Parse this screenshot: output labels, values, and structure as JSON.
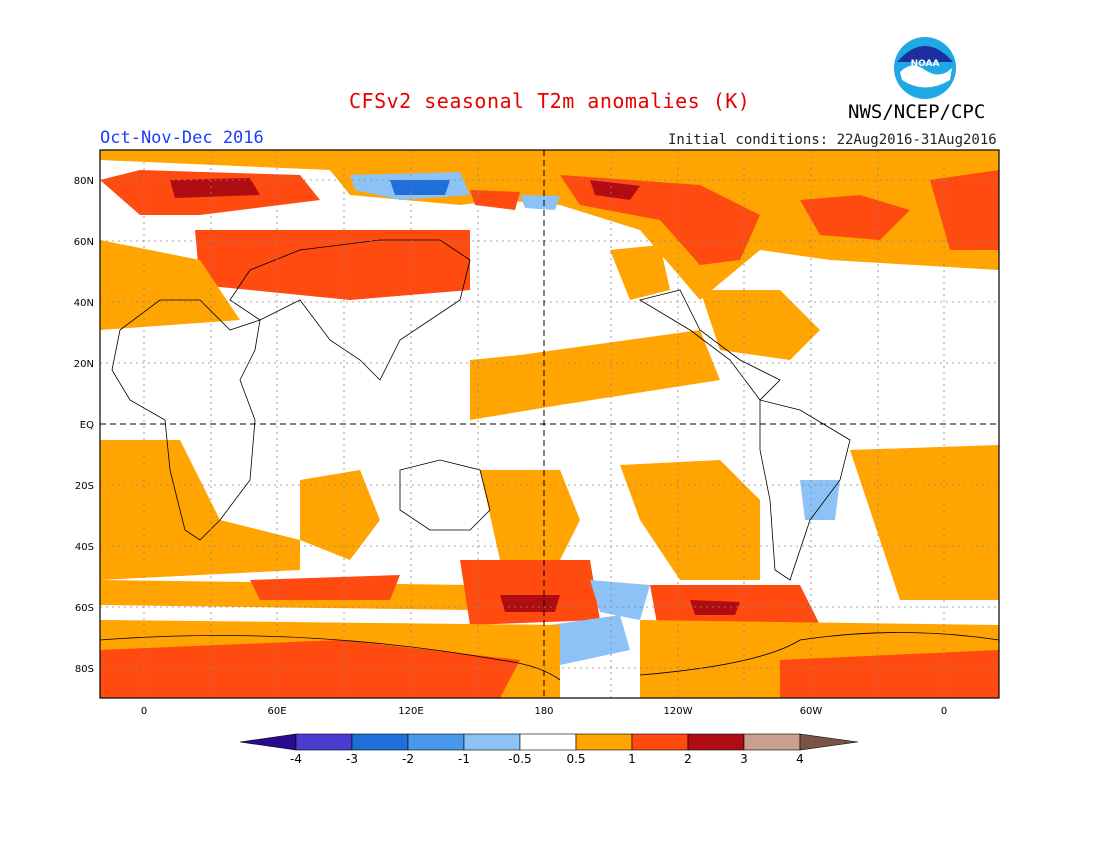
{
  "header": {
    "title": "CFSv2 seasonal T2m anomalies (K)",
    "org": "NWS/NCEP/CPC",
    "period": "Oct-Nov-Dec 2016",
    "initial_conditions": "Initial conditions: 22Aug2016-31Aug2016",
    "logo_text": "NOAA"
  },
  "map": {
    "lat_labels": [
      "80N",
      "60N",
      "40N",
      "20N",
      "EQ",
      "20S",
      "40S",
      "60S",
      "80S"
    ],
    "lon_labels": [
      "0",
      "60E",
      "120E",
      "180",
      "120W",
      "60W",
      "0"
    ]
  },
  "colorbar": {
    "labels": [
      "-4",
      "-3",
      "-2",
      "-1",
      "-0.5",
      "0.5",
      "1",
      "2",
      "3",
      "4"
    ],
    "colors": {
      "below_-4": "#2a0b8f",
      "-4_-3": "#4a3ccf",
      "-3_-2": "#1f6fd8",
      "-2_-1": "#4a98ea",
      "-1_-0.5": "#8cc2f5",
      "-0.5_0.5": "#ffffff",
      "0.5_1": "#ffa400",
      "1_2": "#ff4a10",
      "2_3": "#b00d13",
      "3_4": "#c9a090",
      "above_4": "#7a5248"
    }
  }
}
